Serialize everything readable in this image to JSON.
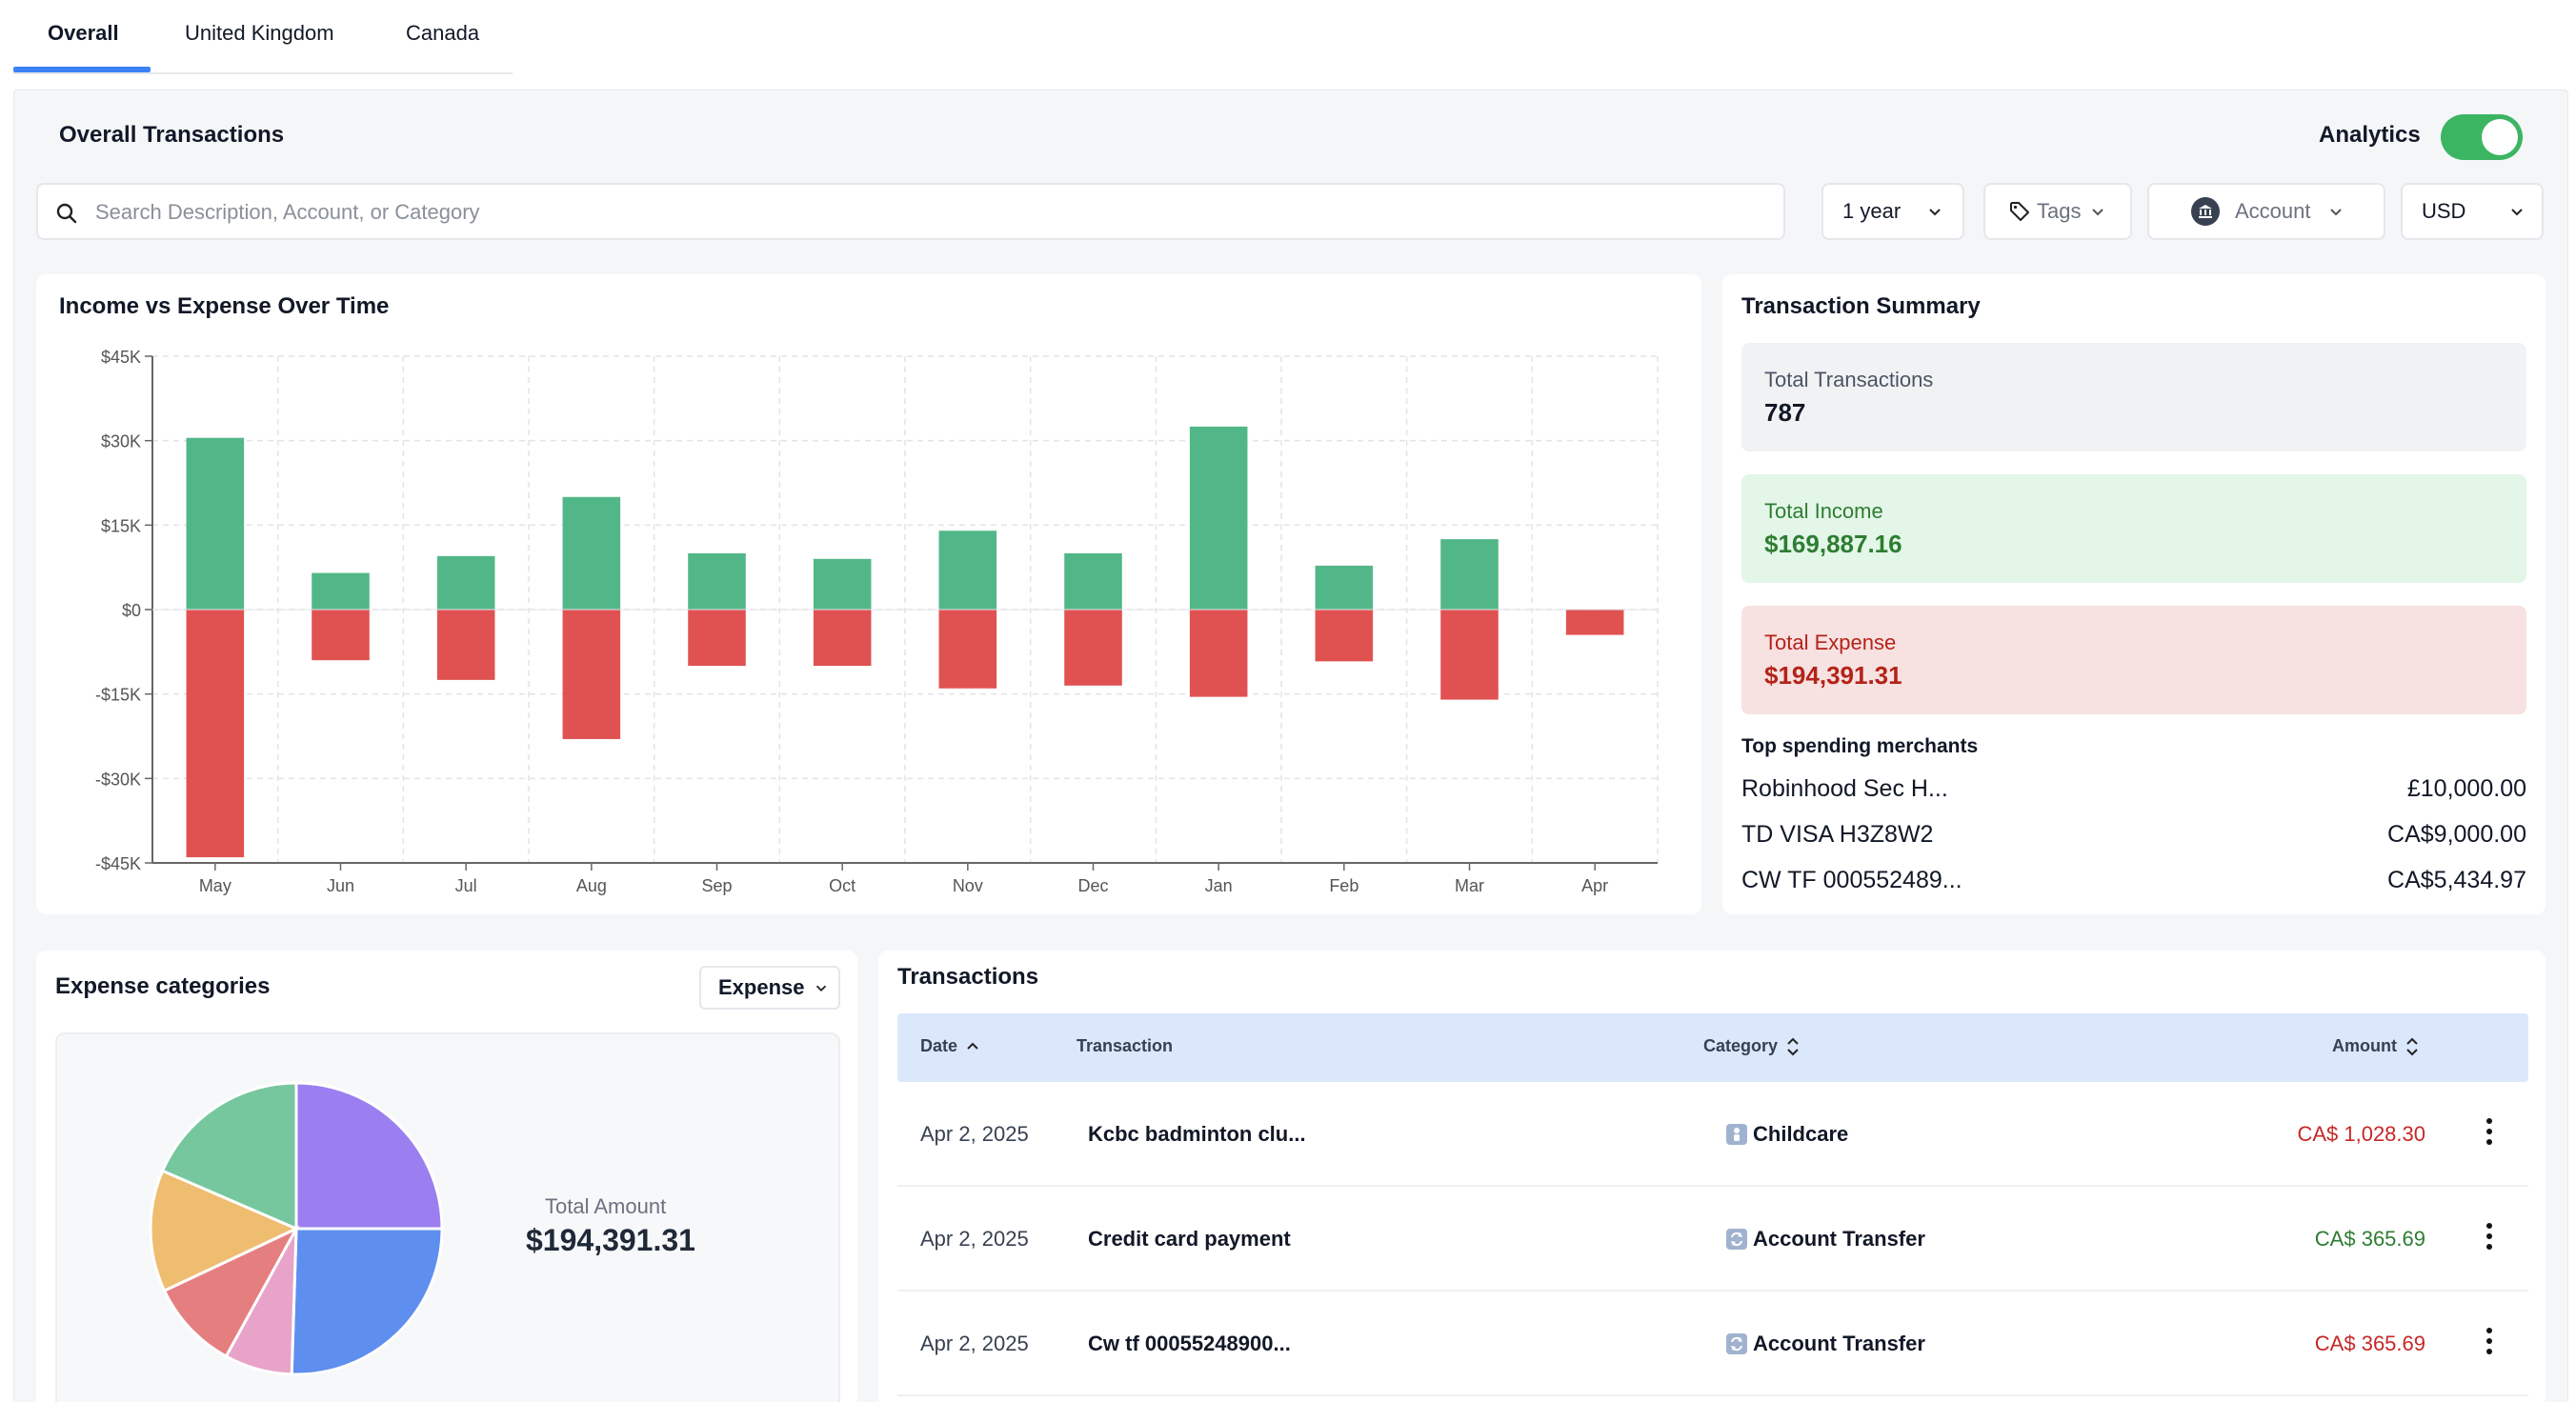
{
  "tabs": [
    {
      "label": "Overall",
      "active": true
    },
    {
      "label": "United Kingdom",
      "active": false
    },
    {
      "label": "Canada",
      "active": false
    }
  ],
  "header": {
    "title": "Overall Transactions",
    "analytics_label": "Analytics",
    "analytics_on": true
  },
  "search": {
    "placeholder": "Search Description, Account, or Category"
  },
  "filters": {
    "period": "1 year",
    "tags": "Tags",
    "account": "Account",
    "currency": "USD"
  },
  "chart": {
    "title": "Income vs Expense Over Time"
  },
  "chart_data": {
    "type": "bar",
    "title": "Income vs Expense Over Time",
    "categories": [
      "May",
      "Jun",
      "Jul",
      "Aug",
      "Sep",
      "Oct",
      "Nov",
      "Dec",
      "Jan",
      "Feb",
      "Mar",
      "Apr"
    ],
    "series": [
      {
        "name": "Income",
        "color": "#52b788",
        "values": [
          30500,
          6500,
          9500,
          20000,
          10000,
          9000,
          14000,
          10000,
          32500,
          7800,
          12500,
          0
        ]
      },
      {
        "name": "Expense",
        "color": "#e05252",
        "values": [
          -44000,
          -9000,
          -12500,
          -23000,
          -10000,
          -10000,
          -14000,
          -13500,
          -15500,
          -9200,
          -16000,
          -4500
        ]
      }
    ],
    "ylim": [
      -45000,
      45000
    ],
    "yticks": [
      {
        "value": 45000,
        "label": "$45K"
      },
      {
        "value": 30000,
        "label": "$30K"
      },
      {
        "value": 15000,
        "label": "$15K"
      },
      {
        "value": 0,
        "label": "$0"
      },
      {
        "value": -15000,
        "label": "-$15K"
      },
      {
        "value": -30000,
        "label": "-$30K"
      },
      {
        "value": -45000,
        "label": "-$45K"
      }
    ],
    "grid": true,
    "stacked": true
  },
  "summary": {
    "title": "Transaction Summary",
    "total_transactions_label": "Total Transactions",
    "total_transactions": "787",
    "total_income_label": "Total Income",
    "total_income": "$169,887.16",
    "total_expense_label": "Total Expense",
    "total_expense": "$194,391.31",
    "merchants_title": "Top spending merchants",
    "merchants": [
      {
        "name": "Robinhood Sec H...",
        "amount": "£10,000.00"
      },
      {
        "name": "TD VISA H3Z8W2",
        "amount": "CA$9,000.00"
      },
      {
        "name": "CW TF 000552489...",
        "amount": "CA$5,434.97"
      }
    ]
  },
  "expense_categories": {
    "title": "Expense categories",
    "dropdown": "Expense",
    "total_label": "Total Amount",
    "total_value": "$194,391.31",
    "pie": [
      {
        "name": "Purple",
        "color": "#9b7ff0",
        "share": 0.25
      },
      {
        "name": "Blue",
        "color": "#5e8fee",
        "share": 0.255
      },
      {
        "name": "Pink",
        "color": "#e8a3c9",
        "share": 0.075
      },
      {
        "name": "Red",
        "color": "#e57f7f",
        "share": 0.1
      },
      {
        "name": "Orange",
        "color": "#efbd70",
        "share": 0.135
      },
      {
        "name": "Green",
        "color": "#76c79e",
        "share": 0.185
      }
    ]
  },
  "transactions": {
    "title": "Transactions",
    "columns": {
      "date": "Date",
      "transaction": "Transaction",
      "category": "Category",
      "amount": "Amount"
    },
    "rows": [
      {
        "date": "Apr 2, 2025",
        "transaction": "Kcbc badminton clu...",
        "category": "Childcare",
        "amount": "CA$ 1,028.30",
        "color": "#c62828"
      },
      {
        "date": "Apr 2, 2025",
        "transaction": "Credit card payment",
        "category": "Account Transfer",
        "amount": "CA$ 365.69",
        "color": "#2e7d32"
      },
      {
        "date": "Apr 2, 2025",
        "transaction": "Cw tf 00055248900...",
        "category": "Account Transfer",
        "amount": "CA$ 365.69",
        "color": "#c62828"
      }
    ]
  }
}
